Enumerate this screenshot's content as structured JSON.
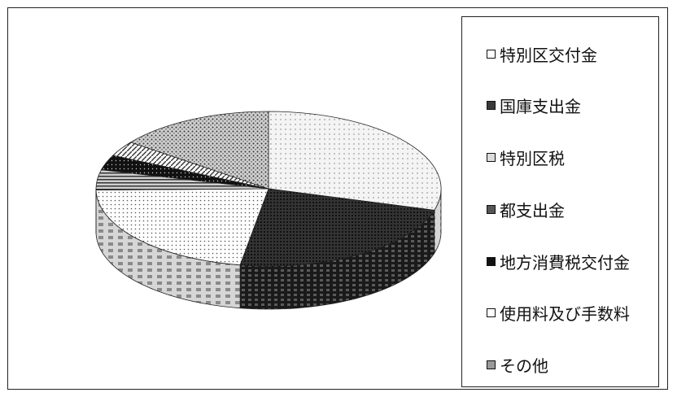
{
  "chart_data": {
    "type": "pie",
    "style": "3d",
    "categories": [
      "特別区交付金",
      "国庫支出金",
      "特別区税",
      "都支出金",
      "地方消費税交付金",
      "使用料及び手数料",
      "その他"
    ],
    "values": [
      28,
      22,
      21,
      4,
      3,
      3,
      14
    ],
    "unit": "%",
    "legend_position": "right",
    "slice_fills": [
      "#f2f2f2",
      "#2a2a2a",
      "#e0e0e0",
      "#8a8a8a",
      "#111111",
      "#ffffff",
      "#a8a8a8"
    ]
  }
}
